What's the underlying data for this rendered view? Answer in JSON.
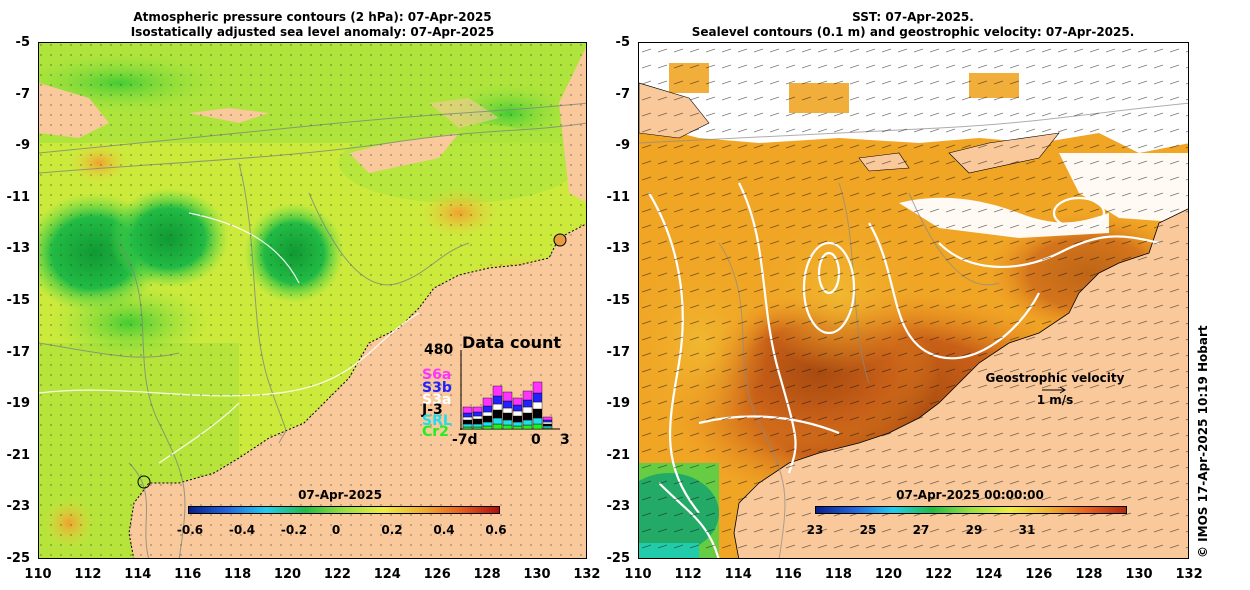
{
  "left_panel": {
    "title_line1": "Atmospheric pressure contours (2 hPa): 07-Apr-2025",
    "title_line2": "Isostatically adjusted sea level anomaly: 07-Apr-2025",
    "colorbar": {
      "title": "07-Apr-2025",
      "ticks": [
        "-0.6",
        "-0.4",
        "-0.2",
        "0",
        "0.2",
        "0.4",
        "0.6"
      ]
    },
    "data_count": {
      "title": "Data count",
      "max_label": "480",
      "x_start": "-7d",
      "x_zero": "0",
      "x_end": "3",
      "satellites": [
        {
          "name": "S6a",
          "color": "#ff33ff"
        },
        {
          "name": "S3b",
          "color": "#2222ff"
        },
        {
          "name": "S3a",
          "color": "#ffffff"
        },
        {
          "name": "J-3",
          "color": "#000000"
        },
        {
          "name": "SRL",
          "color": "#22ddee"
        },
        {
          "name": "Cr2",
          "color": "#22ee22"
        }
      ]
    }
  },
  "right_panel": {
    "title_line1": "SST: 07-Apr-2025.",
    "title_line2": "Sealevel contours (0.1 m) and geostrophic velocity: 07-Apr-2025.",
    "colorbar": {
      "title": "07-Apr-2025 00:00:00",
      "ticks": [
        "23",
        "25",
        "27",
        "29",
        "31"
      ]
    },
    "legend_title": "Geostrophic velocity",
    "legend_scale": "1 m/s"
  },
  "axes": {
    "y_ticks": [
      "-5",
      "-7",
      "-9",
      "-11",
      "-13",
      "-15",
      "-17",
      "-19",
      "-21",
      "-23",
      "-25"
    ],
    "x_ticks": [
      "110",
      "112",
      "114",
      "116",
      "118",
      "120",
      "122",
      "124",
      "126",
      "128",
      "130",
      "132"
    ]
  },
  "credit": "© IMOS 17-Apr-2025 10:19 Hobart",
  "colors": {
    "land": "#f9c89b",
    "sla_green": "#22bb33",
    "sla_yellow": "#d8f040",
    "sst_orange": "#ee9922",
    "sst_dark": "#b85510"
  }
}
